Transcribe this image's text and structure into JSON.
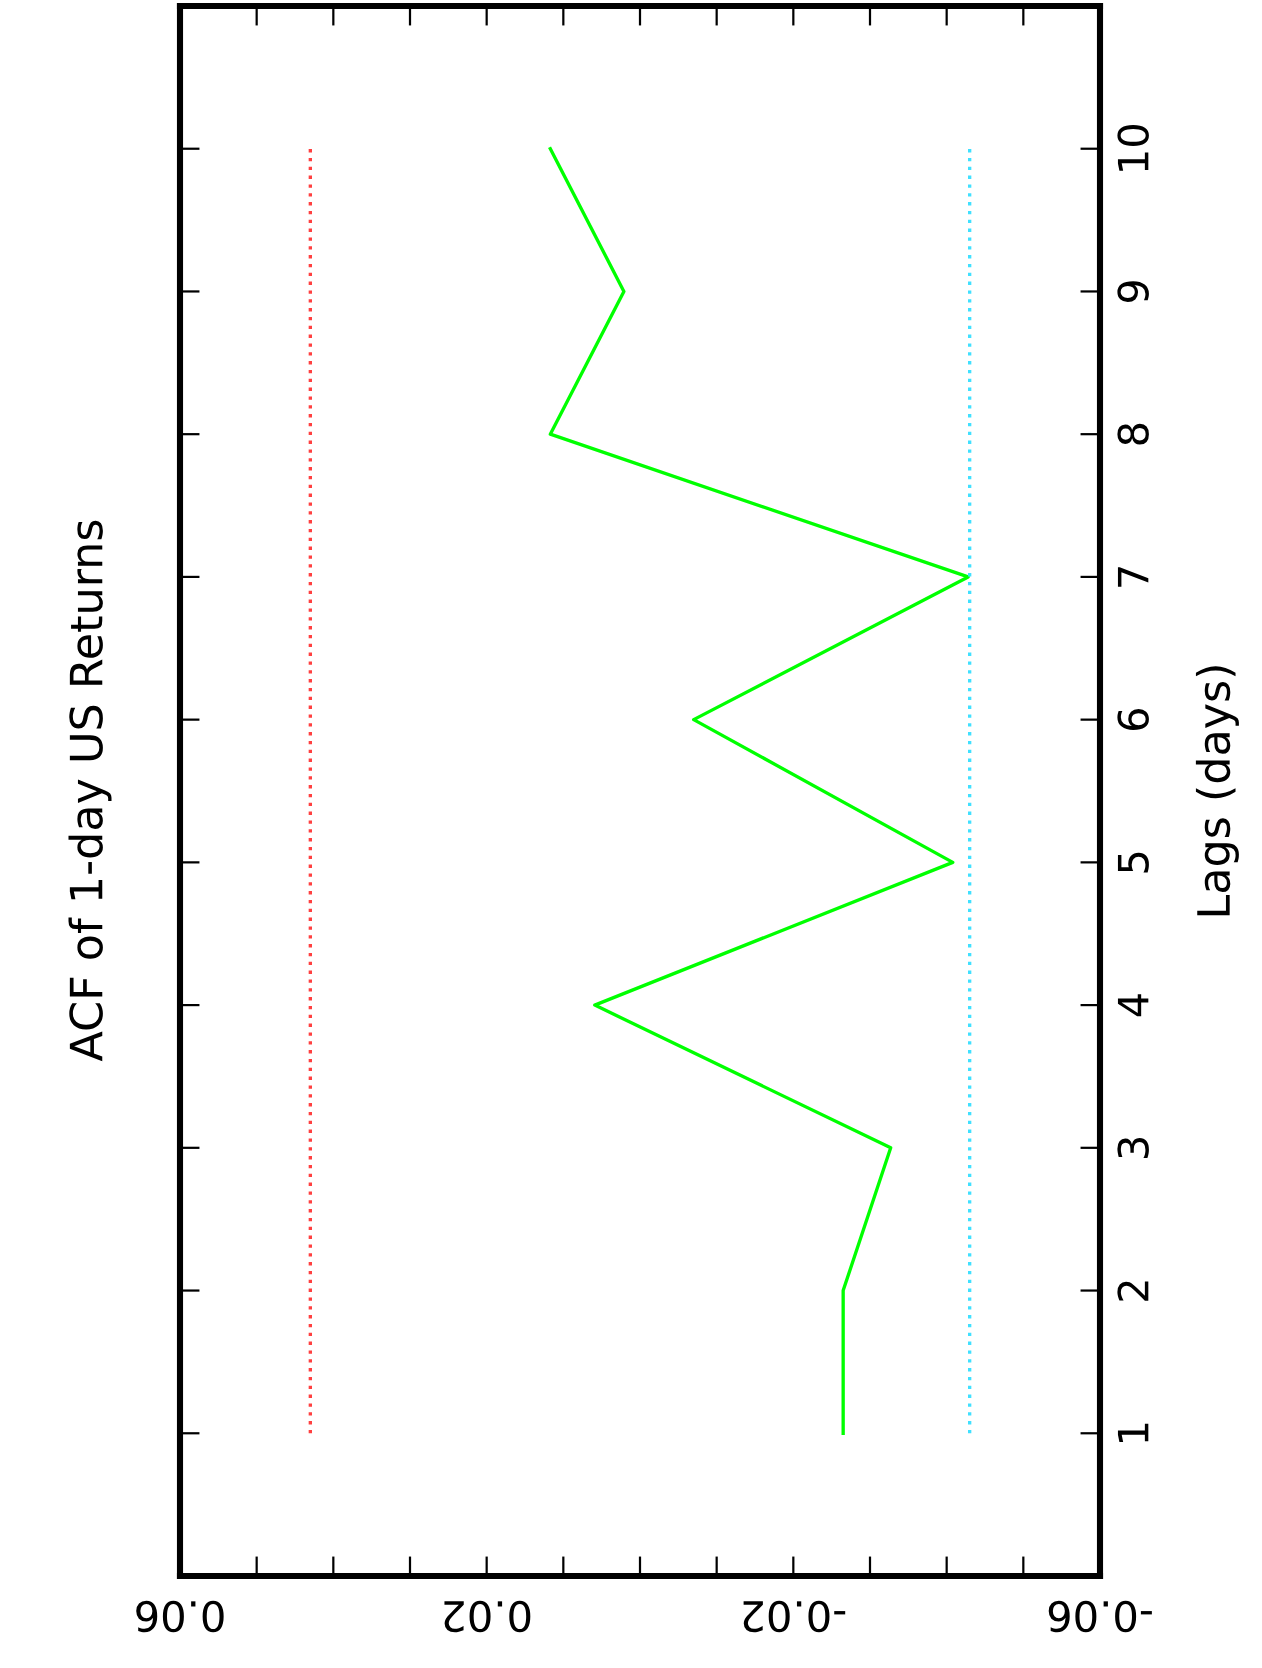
{
  "chart_data": {
    "type": "line",
    "title": "ACF of 1-day US Returns",
    "ylabel": "Lags (days)",
    "series": [
      {
        "color": "#00ff00",
        "x": [
          -0.0265,
          -0.0265,
          -0.0327,
          0.0059,
          -0.0408,
          -0.007,
          -0.0428,
          0.0117,
          0.0021,
          0.0117
        ],
        "values": [
          1,
          2,
          3,
          4,
          5,
          6,
          7,
          8,
          9,
          10
        ]
      }
    ],
    "ylim": [
      0,
      11
    ],
    "yticks": [
      1,
      2,
      3,
      4,
      5,
      6,
      7,
      8,
      9,
      10
    ],
    "xlim": [
      0.06,
      -0.06
    ],
    "xticks": [
      0.06,
      {
        "value": 0.05,
        "label": null
      },
      {
        "value": 0.04,
        "label": null
      },
      {
        "value": 0.03,
        "label": null
      },
      0.02,
      {
        "value": 0.01,
        "label": null
      },
      {
        "value": 0,
        "label": null
      },
      {
        "value": -0.01,
        "label": null
      },
      -0.02,
      {
        "value": -0.03,
        "label": null
      },
      {
        "value": -0.04,
        "label": null
      },
      {
        "value": -0.05,
        "label": null
      },
      -0.06
    ],
    "ref_lines": [
      {
        "axis": "x",
        "value": 0.043,
        "color": "#ff4040",
        "line_style": "dotted"
      },
      {
        "axis": "x",
        "value": -0.043,
        "color": "#40e0ff",
        "line_style": "dotted"
      }
    ],
    "grid": false,
    "legend": false
  }
}
